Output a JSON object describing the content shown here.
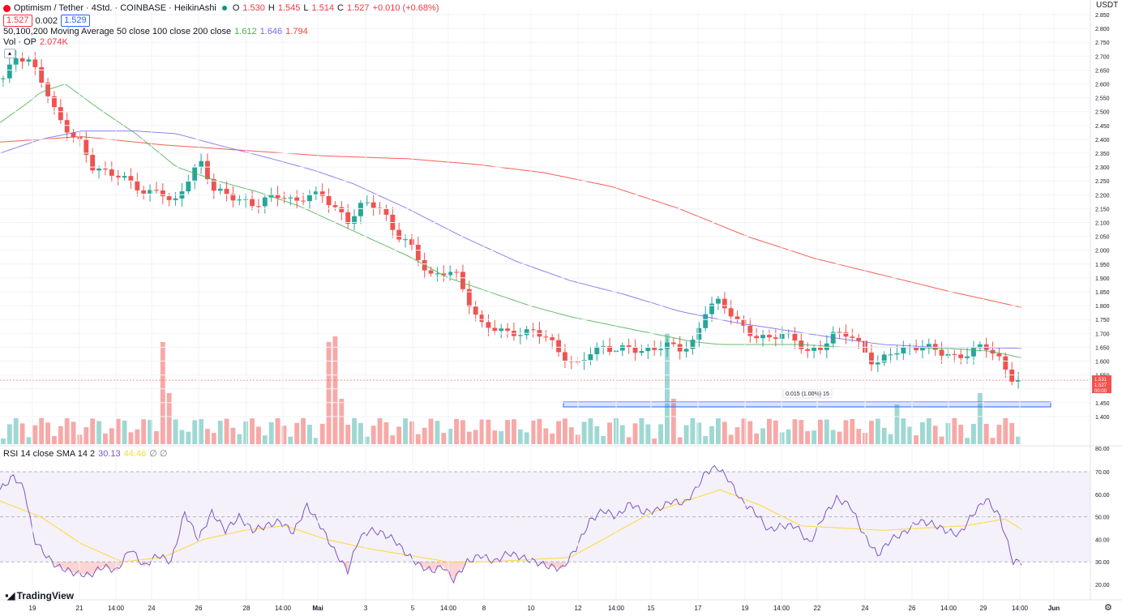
{
  "header": {
    "symbol_title": "Optimism / Tether · 4Std. · COINBASE · HeikinAshi",
    "status_dot_color": "#089981",
    "o_label": "O",
    "o_value": "1.530",
    "h_label": "H",
    "h_value": "1.545",
    "l_label": "L",
    "l_value": "1.514",
    "c_label": "C",
    "c_value": "1.527",
    "change": "+0.010 (+0.68%)",
    "bid": "1.527",
    "spread": "0.002",
    "ask": "1.529",
    "ma_label": "50,100,200 Moving Average 50 close 100 close 200 close",
    "ma50": "1.612",
    "ma100": "1.646",
    "ma200": "1.794",
    "vol_label": "Vol · OP",
    "vol_value": "2.074K",
    "rsi_label": "RSI 14 close SMA 14 2",
    "rsi_value": "30.13",
    "rsi_sma_value": "44.46"
  },
  "brand": {
    "logo_text": "TradingView"
  },
  "colors": {
    "up": "#26a69a",
    "down": "#ef5350",
    "ma50": "#4caf50",
    "ma100": "#7b68ee",
    "ma200": "#f44336",
    "rsi": "#7e57c2",
    "rsi_sma": "#fdd835",
    "rsi_band": "#ede7f6"
  },
  "chart_data": [
    {
      "type": "candlestick",
      "title": "Optimism / Tether · 4Std. · COINBASE · HeikinAshi",
      "y_unit": "USDT",
      "ylim": [
        1.35,
        2.85
      ],
      "y_ticks": [
        "2.850",
        "2.800",
        "2.750",
        "2.700",
        "2.650",
        "2.600",
        "2.550",
        "2.500",
        "2.450",
        "2.400",
        "2.350",
        "2.300",
        "2.250",
        "2.200",
        "2.150",
        "2.100",
        "2.050",
        "2.000",
        "1.950",
        "1.900",
        "1.850",
        "1.800",
        "1.750",
        "1.700",
        "1.650",
        "1.600",
        "1.550",
        "1.500",
        "1.450",
        "1.400"
      ],
      "x_ticks": [
        "19",
        "21",
        "14:00",
        "24",
        "26",
        "28",
        "14:00",
        "Mai",
        "3",
        "5",
        "14:00",
        "8",
        "10",
        "12",
        "14:00",
        "15",
        "17",
        "19",
        "14:00",
        "22",
        "24",
        "26",
        "14:00",
        "29",
        "14:00",
        "Jun"
      ],
      "price_tags": {
        "current": "1.531",
        "last_close": "1.527",
        "countdown": "00:00"
      },
      "ma_anchors": {
        "ma50": [
          [
            0,
            2.46
          ],
          [
            20,
            2.53
          ],
          [
            30,
            2.57
          ],
          [
            48,
            2.6
          ],
          [
            70,
            2.52
          ],
          [
            100,
            2.42
          ],
          [
            130,
            2.3
          ],
          [
            160,
            2.25
          ],
          [
            190,
            2.21
          ],
          [
            220,
            2.16
          ],
          [
            260,
            2.07
          ],
          [
            300,
            1.98
          ],
          [
            330,
            1.9
          ],
          [
            360,
            1.85
          ],
          [
            390,
            1.8
          ],
          [
            420,
            1.76
          ],
          [
            450,
            1.73
          ],
          [
            480,
            1.7
          ],
          [
            510,
            1.67
          ],
          [
            530,
            1.66
          ],
          [
            560,
            1.66
          ],
          [
            590,
            1.66
          ],
          [
            620,
            1.65
          ],
          [
            640,
            1.65
          ],
          [
            660,
            1.65
          ],
          [
            700,
            1.645
          ],
          [
            730,
            1.635
          ],
          [
            752,
            1.612
          ]
        ],
        "ma100": [
          [
            0,
            2.35
          ],
          [
            30,
            2.4
          ],
          [
            60,
            2.43
          ],
          [
            100,
            2.43
          ],
          [
            130,
            2.42
          ],
          [
            160,
            2.38
          ],
          [
            200,
            2.33
          ],
          [
            230,
            2.29
          ],
          [
            260,
            2.24
          ],
          [
            300,
            2.15
          ],
          [
            340,
            2.05
          ],
          [
            380,
            1.96
          ],
          [
            420,
            1.89
          ],
          [
            460,
            1.84
          ],
          [
            500,
            1.78
          ],
          [
            540,
            1.74
          ],
          [
            580,
            1.71
          ],
          [
            620,
            1.68
          ],
          [
            650,
            1.66
          ],
          [
            690,
            1.65
          ],
          [
            730,
            1.648
          ],
          [
            752,
            1.646
          ]
        ],
        "ma200": [
          [
            0,
            2.39
          ],
          [
            60,
            2.41
          ],
          [
            120,
            2.38
          ],
          [
            180,
            2.36
          ],
          [
            240,
            2.34
          ],
          [
            300,
            2.33
          ],
          [
            350,
            2.31
          ],
          [
            400,
            2.28
          ],
          [
            450,
            2.23
          ],
          [
            500,
            2.15
          ],
          [
            550,
            2.05
          ],
          [
            600,
            1.97
          ],
          [
            650,
            1.91
          ],
          [
            700,
            1.85
          ],
          [
            752,
            1.794
          ]
        ]
      },
      "price_anchors": [
        [
          0,
          2.62
        ],
        [
          10,
          2.7
        ],
        [
          20,
          2.68
        ],
        [
          30,
          2.6
        ],
        [
          40,
          2.48
        ],
        [
          50,
          2.42
        ],
        [
          58,
          2.38
        ],
        [
          66,
          2.3
        ],
        [
          76,
          2.28
        ],
        [
          86,
          2.27
        ],
        [
          96,
          2.24
        ],
        [
          106,
          2.2
        ],
        [
          116,
          2.22
        ],
        [
          126,
          2.16
        ],
        [
          136,
          2.25
        ],
        [
          146,
          2.32
        ],
        [
          156,
          2.22
        ],
        [
          166,
          2.2
        ],
        [
          176,
          2.18
        ],
        [
          186,
          2.16
        ],
        [
          196,
          2.19
        ],
        [
          206,
          2.2
        ],
        [
          216,
          2.17
        ],
        [
          226,
          2.2
        ],
        [
          236,
          2.2
        ],
        [
          246,
          2.15
        ],
        [
          256,
          2.1
        ],
        [
          264,
          2.16
        ],
        [
          272,
          2.17
        ],
        [
          280,
          2.15
        ],
        [
          290,
          2.06
        ],
        [
          300,
          2.03
        ],
        [
          310,
          1.95
        ],
        [
          318,
          1.9
        ],
        [
          326,
          1.92
        ],
        [
          334,
          1.93
        ],
        [
          344,
          1.82
        ],
        [
          354,
          1.73
        ],
        [
          364,
          1.72
        ],
        [
          374,
          1.7
        ],
        [
          384,
          1.7
        ],
        [
          394,
          1.71
        ],
        [
          404,
          1.68
        ],
        [
          414,
          1.62
        ],
        [
          424,
          1.58
        ],
        [
          434,
          1.63
        ],
        [
          444,
          1.65
        ],
        [
          454,
          1.64
        ],
        [
          464,
          1.65
        ],
        [
          474,
          1.63
        ],
        [
          484,
          1.65
        ],
        [
          494,
          1.66
        ],
        [
          504,
          1.64
        ],
        [
          512,
          1.67
        ],
        [
          520,
          1.78
        ],
        [
          528,
          1.82
        ],
        [
          536,
          1.79
        ],
        [
          546,
          1.73
        ],
        [
          556,
          1.69
        ],
        [
          566,
          1.68
        ],
        [
          576,
          1.7
        ],
        [
          586,
          1.68
        ],
        [
          596,
          1.63
        ],
        [
          606,
          1.65
        ],
        [
          616,
          1.7
        ],
        [
          626,
          1.7
        ],
        [
          636,
          1.65
        ],
        [
          646,
          1.58
        ],
        [
          656,
          1.63
        ],
        [
          666,
          1.64
        ],
        [
          676,
          1.65
        ],
        [
          686,
          1.65
        ],
        [
          696,
          1.63
        ],
        [
          706,
          1.61
        ],
        [
          716,
          1.63
        ],
        [
          726,
          1.66
        ],
        [
          736,
          1.62
        ],
        [
          746,
          1.54
        ],
        [
          752,
          1.53
        ]
      ],
      "candle_count": 160,
      "volume_spikes": [
        [
          25,
          0.9
        ],
        [
          26,
          0.45
        ],
        [
          51,
          0.9
        ],
        [
          52,
          0.95
        ],
        [
          53,
          0.4
        ],
        [
          104,
          0.98
        ],
        [
          105,
          0.4
        ],
        [
          140,
          0.35
        ],
        [
          153,
          0.45
        ]
      ]
    },
    {
      "type": "line",
      "title": "RSI 14 close SMA 14 2",
      "ylim": [
        15,
        75
      ],
      "y_ticks": [
        "70.00",
        "60.00",
        "50.00",
        "40.00",
        "30.00",
        "20.00"
      ],
      "overbought": 70,
      "oversold": 30,
      "rsi_anchors": [
        [
          0,
          62
        ],
        [
          10,
          68
        ],
        [
          18,
          62
        ],
        [
          25,
          40
        ],
        [
          35,
          32
        ],
        [
          42,
          28
        ],
        [
          55,
          25
        ],
        [
          66,
          24
        ],
        [
          76,
          28
        ],
        [
          86,
          26
        ],
        [
          96,
          36
        ],
        [
          106,
          28
        ],
        [
          116,
          33
        ],
        [
          126,
          30
        ],
        [
          136,
          52
        ],
        [
          146,
          40
        ],
        [
          156,
          52
        ],
        [
          166,
          44
        ],
        [
          176,
          50
        ],
        [
          186,
          44
        ],
        [
          196,
          46
        ],
        [
          206,
          48
        ],
        [
          216,
          43
        ],
        [
          226,
          55
        ],
        [
          236,
          46
        ],
        [
          246,
          35
        ],
        [
          256,
          26
        ],
        [
          264,
          40
        ],
        [
          272,
          44
        ],
        [
          280,
          43
        ],
        [
          290,
          40
        ],
        [
          300,
          33
        ],
        [
          310,
          28
        ],
        [
          318,
          26
        ],
        [
          326,
          28
        ],
        [
          334,
          22
        ],
        [
          344,
          30
        ],
        [
          354,
          33
        ],
        [
          364,
          30
        ],
        [
          374,
          34
        ],
        [
          384,
          32
        ],
        [
          394,
          30
        ],
        [
          404,
          28
        ],
        [
          414,
          27
        ],
        [
          424,
          36
        ],
        [
          434,
          48
        ],
        [
          444,
          53
        ],
        [
          454,
          50
        ],
        [
          464,
          56
        ],
        [
          474,
          52
        ],
        [
          484,
          53
        ],
        [
          494,
          57
        ],
        [
          504,
          56
        ],
        [
          512,
          62
        ],
        [
          520,
          70
        ],
        [
          528,
          72
        ],
        [
          536,
          67
        ],
        [
          546,
          57
        ],
        [
          556,
          52
        ],
        [
          566,
          44
        ],
        [
          576,
          46
        ],
        [
          586,
          46
        ],
        [
          596,
          38
        ],
        [
          606,
          50
        ],
        [
          616,
          58
        ],
        [
          626,
          55
        ],
        [
          636,
          42
        ],
        [
          646,
          33
        ],
        [
          656,
          40
        ],
        [
          666,
          43
        ],
        [
          676,
          48
        ],
        [
          686,
          47
        ],
        [
          696,
          44
        ],
        [
          706,
          42
        ],
        [
          716,
          51
        ],
        [
          726,
          58
        ],
        [
          736,
          50
        ],
        [
          746,
          30
        ],
        [
          752,
          30
        ]
      ],
      "sma_anchors": [
        [
          0,
          57
        ],
        [
          30,
          50
        ],
        [
          60,
          38
        ],
        [
          90,
          30
        ],
        [
          120,
          32
        ],
        [
          150,
          40
        ],
        [
          180,
          44
        ],
        [
          210,
          46
        ],
        [
          240,
          40
        ],
        [
          270,
          36
        ],
        [
          300,
          33
        ],
        [
          330,
          30
        ],
        [
          360,
          30
        ],
        [
          390,
          31
        ],
        [
          420,
          32
        ],
        [
          450,
          42
        ],
        [
          480,
          52
        ],
        [
          510,
          58
        ],
        [
          530,
          62
        ],
        [
          560,
          55
        ],
        [
          590,
          46
        ],
        [
          620,
          45
        ],
        [
          650,
          44
        ],
        [
          680,
          45
        ],
        [
          710,
          46
        ],
        [
          740,
          49
        ],
        [
          752,
          44.46
        ]
      ]
    }
  ]
}
